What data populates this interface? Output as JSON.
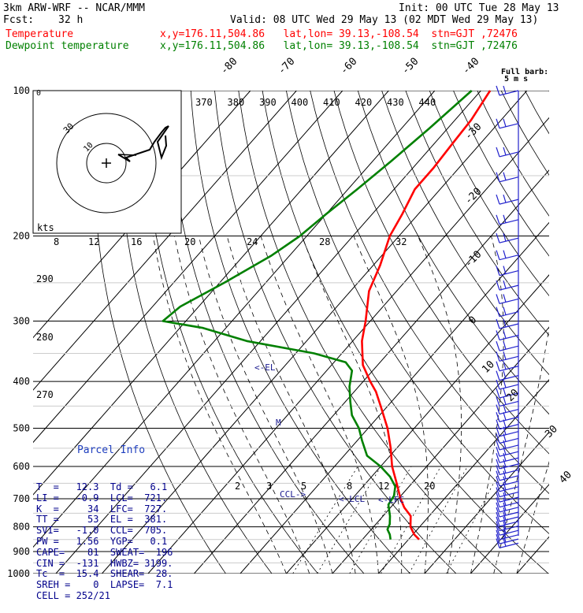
{
  "header": {
    "model": "3km ARW-WRF -- NCAR/MMM",
    "init": "Init: 00 UTC Tue 28 May 13",
    "fcst_label": "Fcst:",
    "fcst_value": "32 h",
    "valid": "Valid: 08 UTC Wed 29 May 13 (02 MDT Wed 29 May 13)",
    "temp_label": "Temperature",
    "temp_info": "x,y=176.11,504.86   lat,lon= 39.13,-108.54  stn=GJT ,72476",
    "dew_label": "Dewpoint temperature",
    "dew_info": "x,y=176.11,504.86   lat,lon= 39.13,-108.54  stn=GJT ,72476"
  },
  "colors": {
    "temperature": "#ff0000",
    "dewpoint": "#008000",
    "text": "#000000",
    "parcel": "#00008b",
    "barb": "#2222cc"
  },
  "chart_data": {
    "type": "line",
    "pressure_ticks": [
      100,
      200,
      300,
      400,
      500,
      600,
      700,
      800,
      900,
      1000
    ],
    "isotherm_labels": [
      "-80",
      "-70",
      "-60",
      "-50",
      "-40",
      "-30",
      "-20",
      "-10",
      "0",
      "10",
      "20",
      "30",
      "40"
    ],
    "theta_labels": [
      "370",
      "380",
      "390",
      "400",
      "410",
      "420",
      "430",
      "440"
    ],
    "mixing_ratio_labels": [
      "2",
      "3",
      "5",
      "8",
      "12",
      "20"
    ],
    "hodo_speed_labels": [
      "8",
      "12",
      "16",
      "20",
      "24",
      "28",
      "32"
    ],
    "hodo_units": "kts",
    "barb_label": [
      "Full barb:",
      "5 m s"
    ],
    "height_labels": [
      "290",
      "280",
      "270"
    ],
    "annotations": [
      "<-EL",
      "M",
      "CCL->",
      "<-LCL",
      "<-LFC"
    ],
    "series": [
      {
        "name": "Temperature",
        "p": [
          850,
          830,
          800,
          760,
          730,
          700,
          650,
          600,
          550,
          500,
          450,
          420,
          400,
          370,
          330,
          300,
          260,
          230,
          200,
          180,
          160,
          145,
          130,
          115,
          100
        ],
        "t": [
          12.3,
          10.3,
          8.0,
          6.0,
          3.0,
          0.5,
          -3.3,
          -7.5,
          -11.3,
          -15.8,
          -21.5,
          -25.3,
          -28.5,
          -33.2,
          -38.0,
          -41.0,
          -46.0,
          -48.5,
          -52.0,
          -53.5,
          -55.5,
          -55.5,
          -56.0,
          -56.5,
          -58.0
        ]
      },
      {
        "name": "Dewpoint temperature",
        "p": [
          850,
          830,
          810,
          790,
          760,
          720,
          690,
          660,
          630,
          600,
          570,
          530,
          500,
          470,
          440,
          410,
          380,
          365,
          350,
          330,
          310,
          300,
          280,
          250,
          220,
          200,
          180,
          160,
          140,
          120,
          100
        ],
        "t": [
          6.1,
          5.0,
          3.5,
          3.0,
          1.5,
          -1.0,
          -1.5,
          -3.0,
          -6.0,
          -10.0,
          -15.0,
          -19.0,
          -22.0,
          -26.0,
          -29.0,
          -32.0,
          -34.5,
          -37.5,
          -46.0,
          -63.0,
          -75.0,
          -85.0,
          -84.0,
          -79.0,
          -74.0,
          -71.5,
          -70.0,
          -68.0,
          -66.0,
          -64.0,
          -62.0
        ]
      }
    ]
  },
  "parcel_info": {
    "title": "Parcel Info",
    "rows": [
      "T  =   12.3  Td =   6.1",
      "LI =   -0.9  LCL=  721.",
      "K  =     34  LFC=  727.",
      "TT =     53  EL =  381.",
      "SVI=   -1.0  CCL=  705.",
      "PW =   1.56  YGP=   0.1",
      "CAPE=    81  SWEAT=  196",
      "CIN =  -131  HWBZ= 3199.",
      "Tc  =  15.4  SHEAR=  28.",
      "SREH =    0  LAPSE=  7.1",
      "CELL = 252/21"
    ]
  }
}
